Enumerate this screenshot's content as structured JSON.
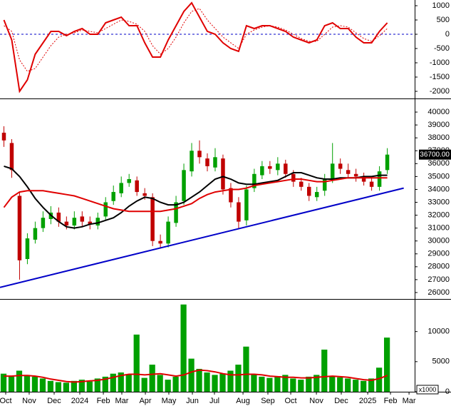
{
  "chart_data": [
    {
      "type": "line",
      "xlim": [
        0,
        53
      ],
      "ylim": [
        -2250,
        1200
      ],
      "yticks": [
        -2000,
        -1500,
        -1000,
        -500,
        0,
        500,
        1000
      ],
      "series": [
        {
          "color": "#e00000",
          "dash": false,
          "values": [
            500,
            -200,
            -2000,
            -1600,
            -700,
            -300,
            100,
            100,
            -50,
            100,
            200,
            0,
            0,
            400,
            500,
            600,
            300,
            300,
            -300,
            -800,
            -800,
            -200,
            300,
            800,
            1100,
            600,
            100,
            0,
            -300,
            -500,
            -600,
            300,
            200,
            300,
            300,
            200,
            100,
            -100,
            -200,
            -300,
            -200,
            300,
            400,
            200,
            200,
            -100,
            -300,
            -300,
            100,
            400
          ]
        },
        {
          "color": "#e00000",
          "dash": true,
          "values": [
            300,
            100,
            -900,
            -1300,
            -1200,
            -800,
            -400,
            -100,
            0,
            50,
            150,
            100,
            50,
            200,
            350,
            500,
            450,
            350,
            100,
            -400,
            -700,
            -500,
            -100,
            400,
            800,
            900,
            500,
            200,
            -100,
            -300,
            -500,
            0,
            150,
            250,
            300,
            250,
            150,
            0,
            -150,
            -250,
            -250,
            0,
            250,
            300,
            250,
            50,
            -150,
            -250,
            -50,
            200
          ]
        }
      ]
    },
    {
      "type": "candlestick",
      "xlim": [
        0,
        53
      ],
      "ylim": [
        25500,
        41000
      ],
      "yticks": [
        26000,
        27000,
        28000,
        29000,
        30000,
        31000,
        32000,
        33000,
        34000,
        35000,
        36000,
        37000,
        38000,
        39000,
        40000
      ],
      "up_color": "#00a000",
      "down_color": "#c00000",
      "last_label": "36700.00",
      "open": [
        38400,
        37600,
        33500,
        28600,
        30100,
        31000,
        31700,
        32200,
        31500,
        31200,
        31900,
        31500,
        31200,
        31900,
        33100,
        33700,
        34500,
        34700,
        33700,
        33400,
        30000,
        29800,
        31400,
        33100,
        35400,
        37000,
        36400,
        35700,
        36400,
        34100,
        33000,
        31600,
        34100,
        35100,
        35800,
        35500,
        36000,
        35200,
        34600,
        34200,
        33400,
        33900,
        34800,
        36000,
        35500,
        35200,
        35000,
        34600,
        34200,
        35500
      ],
      "high": [
        38900,
        37900,
        33800,
        30600,
        31500,
        32300,
        32700,
        32600,
        31900,
        32300,
        32300,
        31900,
        32200,
        33400,
        34300,
        35000,
        35200,
        35000,
        34100,
        33700,
        30500,
        31900,
        33500,
        36000,
        37600,
        37800,
        36800,
        37200,
        36700,
        34500,
        33400,
        34300,
        35600,
        36200,
        36200,
        36500,
        36300,
        35500,
        34900,
        34500,
        34200,
        35200,
        37600,
        36400,
        36000,
        35600,
        35300,
        34900,
        35800,
        37200
      ],
      "low": [
        37300,
        34900,
        27000,
        28200,
        29800,
        30700,
        31300,
        31100,
        30900,
        30900,
        31100,
        30900,
        30900,
        31600,
        32800,
        33400,
        34200,
        33500,
        33200,
        29600,
        29400,
        29500,
        31100,
        32800,
        35000,
        36000,
        35400,
        35400,
        33600,
        32600,
        31000,
        31200,
        33800,
        34800,
        35200,
        35100,
        34900,
        34200,
        33900,
        33100,
        33100,
        33500,
        34500,
        35200,
        34900,
        34600,
        34300,
        33900,
        33900,
        35200
      ],
      "close": [
        37800,
        35500,
        28500,
        30200,
        31000,
        31800,
        32200,
        31500,
        31200,
        31800,
        31500,
        31300,
        31800,
        33000,
        33800,
        34500,
        34800,
        33800,
        33500,
        30000,
        29800,
        31500,
        33000,
        35500,
        37000,
        36500,
        35800,
        36500,
        34000,
        33000,
        31500,
        34000,
        35200,
        35800,
        35600,
        36000,
        35200,
        34600,
        34200,
        33500,
        33800,
        34800,
        36000,
        35600,
        35200,
        35000,
        34600,
        34200,
        35400,
        36700
      ],
      "series": [
        {
          "color": "#000000",
          "values": [
            35800,
            35600,
            35000,
            34200,
            33300,
            32600,
            32000,
            31500,
            31100,
            31000,
            31100,
            31300,
            31400,
            31600,
            31800,
            32200,
            32700,
            33100,
            33400,
            33300,
            33000,
            32800,
            32800,
            33000,
            33400,
            33800,
            34300,
            34800,
            35000,
            34800,
            34500,
            34400,
            34400,
            34500,
            34600,
            34700,
            35000,
            35300,
            35300,
            35100,
            34900,
            34800,
            34800,
            34900,
            34900,
            34900,
            35000,
            35000,
            35100,
            35100
          ]
        },
        {
          "color": "#e00000",
          "values": [
            32600,
            33400,
            33800,
            33900,
            33900,
            33900,
            33800,
            33700,
            33600,
            33500,
            33300,
            33100,
            32900,
            32700,
            32500,
            32400,
            32300,
            32300,
            32300,
            32300,
            32300,
            32400,
            32500,
            32700,
            32900,
            33300,
            33600,
            33800,
            33900,
            34000,
            34000,
            34100,
            34300,
            34400,
            34500,
            34600,
            34700,
            34800,
            34800,
            34700,
            34600,
            34600,
            34700,
            34800,
            34900,
            34900,
            34900,
            34900,
            34900,
            34900
          ]
        }
      ],
      "trendline": {
        "color": "#0000c8",
        "x": [
          0,
          51.6
        ],
        "values": [
          26400,
          34100
        ]
      }
    },
    {
      "type": "bar",
      "xlim": [
        0,
        53
      ],
      "ylim": [
        0,
        15300
      ],
      "yticks": [
        0,
        5000,
        10000
      ],
      "unit_label": "x1000",
      "color": "#00a000",
      "values": [
        3000,
        2500,
        3500,
        2800,
        2500,
        2200,
        1800,
        1600,
        1500,
        1800,
        2000,
        1700,
        2200,
        2500,
        3000,
        3200,
        2800,
        9500,
        2300,
        4500,
        2800,
        2000,
        2500,
        14500,
        5500,
        3800,
        3200,
        2800,
        3000,
        3500,
        4500,
        7500,
        2800,
        2500,
        2300,
        2600,
        2800,
        2200,
        2000,
        2500,
        2800,
        7000,
        2600,
        2400,
        2200,
        2000,
        1800,
        2200,
        4000,
        9000
      ],
      "series": [
        {
          "color": "#e00000",
          "values": [
            2600,
            2600,
            2700,
            2700,
            2600,
            2400,
            2100,
            1900,
            1700,
            1600,
            1700,
            1800,
            1900,
            2100,
            2400,
            2700,
            2900,
            2900,
            2800,
            2900,
            3000,
            2800,
            2600,
            2800,
            3300,
            3600,
            3500,
            3300,
            3000,
            2800,
            2800,
            2900,
            2900,
            2800,
            2600,
            2500,
            2400,
            2400,
            2300,
            2300,
            2400,
            2500,
            2600,
            2500,
            2400,
            2200,
            2000,
            1900,
            2200,
            2700
          ]
        }
      ],
      "xticks": [
        {
          "value": 0.73,
          "label": "Oct"
        },
        {
          "value": 3.73,
          "label": "Nov"
        },
        {
          "value": 6.92,
          "label": "Dec"
        },
        {
          "value": 10.2,
          "label": "2024"
        },
        {
          "value": 13.21,
          "label": "Feb"
        },
        {
          "value": 15.57,
          "label": "Mar"
        },
        {
          "value": 18.58,
          "label": "Apr"
        },
        {
          "value": 21.58,
          "label": "May"
        },
        {
          "value": 24.59,
          "label": "Jun"
        },
        {
          "value": 27.41,
          "label": "Jul"
        },
        {
          "value": 31.06,
          "label": "Aug"
        },
        {
          "value": 34.24,
          "label": "Sep"
        },
        {
          "value": 37.16,
          "label": "Oct"
        },
        {
          "value": 40.44,
          "label": "Nov"
        },
        {
          "value": 43.62,
          "label": "Dec"
        },
        {
          "value": 47.0,
          "label": "2025"
        },
        {
          "value": 49.91,
          "label": "Feb"
        },
        {
          "value": 52.28,
          "label": "Mar"
        }
      ]
    }
  ]
}
